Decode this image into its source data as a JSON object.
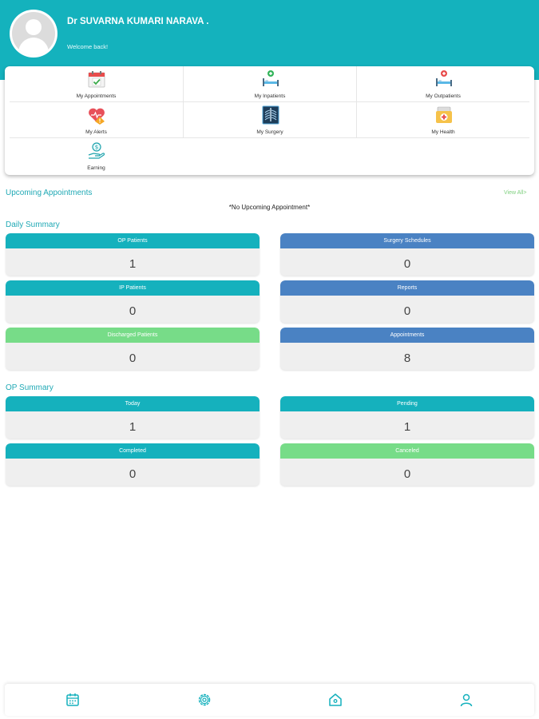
{
  "profile": {
    "name": "Dr SUVARNA KUMARI NARAVA .",
    "welcome": "Welcome back!"
  },
  "menu": [
    {
      "label": "My Appointments",
      "icon": "calendar-check-icon"
    },
    {
      "label": "My Inpatients",
      "icon": "hospital-bed-green-icon"
    },
    {
      "label": "My Outpatients",
      "icon": "hospital-bed-red-icon"
    },
    {
      "label": "My Alerts",
      "icon": "heart-alert-icon"
    },
    {
      "label": "My Surgery",
      "icon": "xray-icon"
    },
    {
      "label": "My Health",
      "icon": "first-aid-bag-icon"
    },
    {
      "label": "Earning",
      "icon": "hand-coin-icon"
    }
  ],
  "upcoming": {
    "title": "Upcoming Appointments",
    "view_all": "View All>",
    "empty": "*No Upcoming Appointment*"
  },
  "daily_summary": {
    "title": "Daily Summary",
    "cards": [
      {
        "label": "OP Patients",
        "value": "1",
        "color": "#15b1bd"
      },
      {
        "label": "Surgery Schedules",
        "value": "0",
        "color": "#4a82c3"
      },
      {
        "label": "IP Patients",
        "value": "0",
        "color": "#15b1bd"
      },
      {
        "label": "Reports",
        "value": "0",
        "color": "#4a82c3"
      },
      {
        "label": "Discharged Patients",
        "value": "0",
        "color": "#77dc88"
      },
      {
        "label": "Appointments",
        "value": "8",
        "color": "#4a82c3"
      }
    ]
  },
  "op_summary": {
    "title": "OP Summary",
    "cards": [
      {
        "label": "Today",
        "value": "1",
        "color": "#15b1bd"
      },
      {
        "label": "Pending",
        "value": "1",
        "color": "#15b1bd"
      },
      {
        "label": "Completed",
        "value": "0",
        "color": "#15b1bd"
      },
      {
        "label": "Canceled",
        "value": "0",
        "color": "#77dc88"
      }
    ]
  },
  "bottom_nav": [
    "calendar-icon",
    "settings-icon",
    "home-icon",
    "profile-icon"
  ]
}
